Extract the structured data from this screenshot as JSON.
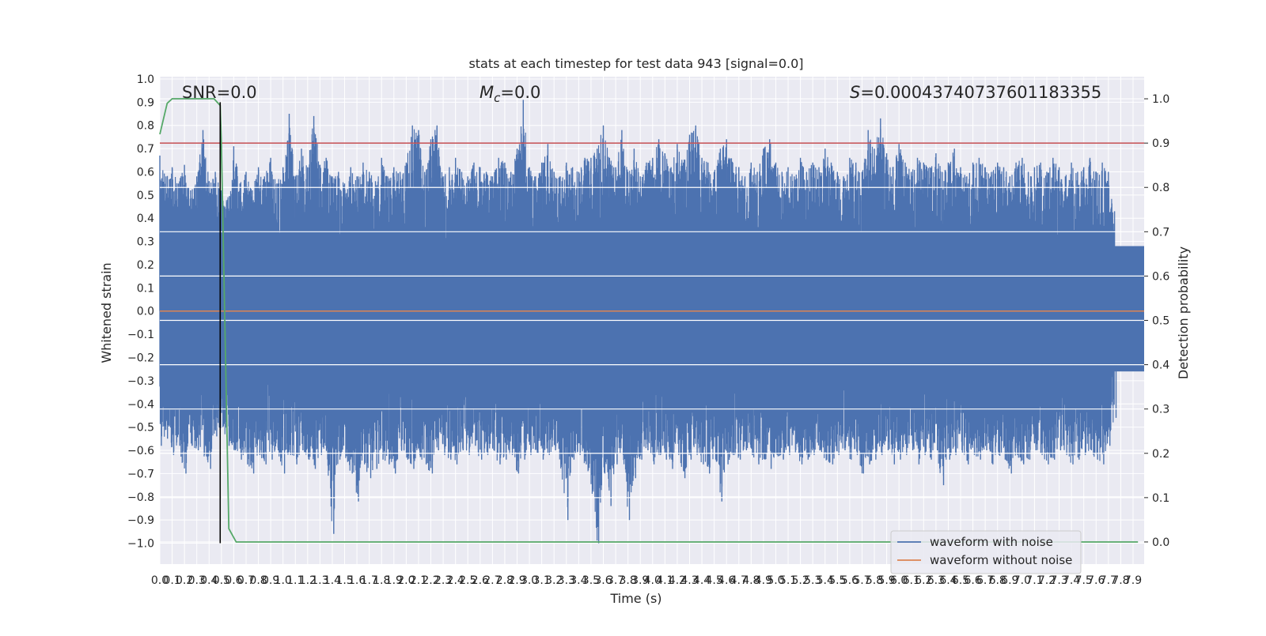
{
  "chart_data": {
    "type": "line",
    "title": "stats at each timestep for test data 943 [signal=0.0]",
    "xlabel": "Time (s)",
    "ylabel": "Whitened strain",
    "y2label": "Detection probability",
    "xlim": [
      0.0,
      7.99
    ],
    "ylim": [
      -1.09,
      1.01
    ],
    "y2lim": [
      -0.05,
      1.05
    ],
    "x_ticks": [
      "0.0",
      "0.1",
      "0.2",
      "0.3",
      "0.4",
      "0.5",
      "0.6",
      "0.7",
      "0.8",
      "0.9",
      "1.0",
      "1.1",
      "1.2",
      "1.3",
      "1.4",
      "1.5",
      "1.6",
      "1.7",
      "1.8",
      "1.9",
      "2.0",
      "2.1",
      "2.2",
      "2.3",
      "2.4",
      "2.5",
      "2.6",
      "2.7",
      "2.8",
      "2.9",
      "3.0",
      "3.1",
      "3.2",
      "3.3",
      "3.4",
      "3.5",
      "3.6",
      "3.7",
      "3.8",
      "3.9",
      "4.0",
      "4.1",
      "4.2",
      "4.3",
      "4.4",
      "4.5",
      "4.6",
      "4.7",
      "4.8",
      "4.9",
      "5.0",
      "5.1",
      "5.2",
      "5.3",
      "5.4",
      "5.5",
      "5.6",
      "5.7",
      "5.8",
      "5.9",
      "6.0",
      "6.1",
      "6.2",
      "6.3",
      "6.4",
      "6.5",
      "6.6",
      "6.7",
      "6.8",
      "6.9",
      "7.0",
      "7.1",
      "7.2",
      "7.3",
      "7.4",
      "7.5",
      "7.6",
      "7.7",
      "7.8",
      "7.9"
    ],
    "y_ticks": [
      "1.0",
      "0.9",
      "0.8",
      "0.7",
      "0.6",
      "0.5",
      "0.4",
      "0.3",
      "0.2",
      "0.1",
      "0.0",
      "−0.1",
      "−0.2",
      "−0.3",
      "−0.4",
      "−0.5",
      "−0.6",
      "−0.7",
      "−0.8",
      "−0.9",
      "−1.0"
    ],
    "y2_ticks": [
      "1.0",
      "0.9",
      "0.8",
      "0.7",
      "0.6",
      "0.5",
      "0.4",
      "0.3",
      "0.2",
      "0.1",
      "0.0"
    ],
    "grid": true,
    "legend_position": "bottom-right",
    "annotations": {
      "snr": "SNR=0.0",
      "mc_symbol": "M",
      "mc_sub": "c",
      "mc_value": "=0.0",
      "s_symbol": "S",
      "s_value": "=0.0004374073760118335​5"
    },
    "series": [
      {
        "name": "waveform with noise",
        "color": "#4c72b0",
        "axis": "left",
        "envelope_x": [
          0.0,
          0.05,
          0.1,
          0.15,
          0.2,
          0.25,
          0.3,
          0.35,
          0.4,
          0.45,
          0.5,
          0.55,
          0.6,
          0.65,
          0.7,
          0.75,
          0.8,
          0.85,
          0.9,
          0.95,
          1.0,
          1.05,
          1.1,
          1.15,
          1.2,
          1.25,
          1.3,
          1.35,
          1.4,
          1.45,
          1.5,
          1.55,
          1.6,
          1.65,
          1.7,
          1.75,
          1.8,
          1.85,
          1.9,
          1.95,
          2.0,
          2.05,
          2.1,
          2.15,
          2.2,
          2.25,
          2.3,
          2.35,
          2.4,
          2.45,
          2.5,
          2.55,
          2.6,
          2.65,
          2.7,
          2.75,
          2.8,
          2.85,
          2.9,
          2.95,
          3.0,
          3.05,
          3.1,
          3.15,
          3.2,
          3.25,
          3.3,
          3.35,
          3.4,
          3.45,
          3.5,
          3.55,
          3.6,
          3.65,
          3.7,
          3.75,
          3.8,
          3.85,
          3.9,
          3.95,
          4.0,
          4.05,
          4.1,
          4.15,
          4.2,
          4.25,
          4.3,
          4.35,
          4.4,
          4.45,
          4.5,
          4.55,
          4.6,
          4.65,
          4.7,
          4.75,
          4.8,
          4.85,
          4.9,
          4.95,
          5.0,
          5.05,
          5.1,
          5.15,
          5.2,
          5.25,
          5.3,
          5.35,
          5.4,
          5.45,
          5.5,
          5.55,
          5.6,
          5.65,
          5.7,
          5.75,
          5.8,
          5.85,
          5.9,
          5.95,
          6.0,
          6.05,
          6.1,
          6.15,
          6.2,
          6.25,
          6.3,
          6.35,
          6.4,
          6.45,
          6.5,
          6.55,
          6.6,
          6.65,
          6.7,
          6.75,
          6.8,
          6.85,
          6.9,
          6.95,
          7.0,
          7.05,
          7.1,
          7.15,
          7.2,
          7.25,
          7.3,
          7.35,
          7.4,
          7.45,
          7.5,
          7.55,
          7.6,
          7.65,
          7.7,
          7.75,
          7.8,
          7.85,
          7.9,
          7.95,
          7.99
        ],
        "envelope_max": [
          0.67,
          0.58,
          0.62,
          0.55,
          0.63,
          0.52,
          0.58,
          0.78,
          0.56,
          0.6,
          0.52,
          0.48,
          0.71,
          0.55,
          0.6,
          0.52,
          0.62,
          0.58,
          0.66,
          0.55,
          0.62,
          0.85,
          0.58,
          0.7,
          0.62,
          0.84,
          0.63,
          0.66,
          0.58,
          0.6,
          0.55,
          0.62,
          0.58,
          0.64,
          0.6,
          0.56,
          0.66,
          0.58,
          0.62,
          0.6,
          0.64,
          0.8,
          0.78,
          0.6,
          0.74,
          0.8,
          0.58,
          0.62,
          0.66,
          0.6,
          0.58,
          0.64,
          0.62,
          0.6,
          0.58,
          0.66,
          0.64,
          0.6,
          0.7,
          0.91,
          0.62,
          0.58,
          0.64,
          0.72,
          0.6,
          0.58,
          0.64,
          0.62,
          0.6,
          0.66,
          0.66,
          0.7,
          0.8,
          0.66,
          0.62,
          0.78,
          0.6,
          0.7,
          0.58,
          0.64,
          0.66,
          0.74,
          0.68,
          0.62,
          0.72,
          0.64,
          0.76,
          0.8,
          0.66,
          0.64,
          0.6,
          0.7,
          0.74,
          0.64,
          0.62,
          0.58,
          0.64,
          0.6,
          0.7,
          0.74,
          0.64,
          0.6,
          0.62,
          0.58,
          0.66,
          0.6,
          0.64,
          0.62,
          0.7,
          0.64,
          0.6,
          0.58,
          0.66,
          0.64,
          0.6,
          0.78,
          0.7,
          0.83,
          0.68,
          0.62,
          0.72,
          0.64,
          0.6,
          0.66,
          0.64,
          0.62,
          0.68,
          0.6,
          0.64,
          0.7,
          0.62,
          0.58,
          0.64,
          0.66,
          0.62,
          0.6,
          0.64,
          0.62,
          0.58,
          0.64,
          0.66,
          0.6,
          0.62,
          0.64,
          0.6,
          0.66,
          0.62,
          0.58,
          0.64,
          0.6,
          0.62,
          0.66,
          0.6,
          0.64,
          0.6,
          0.43
        ],
        "envelope_min": [
          -0.58,
          -0.55,
          -0.62,
          -0.58,
          -0.7,
          -0.58,
          -0.6,
          -0.62,
          -0.68,
          -0.54,
          -0.5,
          -0.58,
          -0.6,
          -0.64,
          -0.66,
          -0.7,
          -0.62,
          -0.66,
          -0.64,
          -0.6,
          -0.7,
          -0.62,
          -0.66,
          -0.6,
          -0.64,
          -0.68,
          -0.62,
          -0.6,
          -0.96,
          -0.64,
          -0.62,
          -0.7,
          -0.82,
          -0.66,
          -0.72,
          -0.68,
          -0.64,
          -0.66,
          -0.7,
          -0.6,
          -0.64,
          -0.68,
          -0.62,
          -0.66,
          -0.7,
          -0.6,
          -0.62,
          -0.64,
          -0.66,
          -0.6,
          -0.62,
          -0.58,
          -0.64,
          -0.62,
          -0.6,
          -0.66,
          -0.64,
          -0.62,
          -0.7,
          -0.64,
          -0.62,
          -0.6,
          -0.64,
          -0.62,
          -0.6,
          -0.66,
          -0.9,
          -0.64,
          -0.62,
          -0.66,
          -0.76,
          -1.0,
          -0.7,
          -0.84,
          -0.66,
          -0.62,
          -0.9,
          -0.72,
          -0.64,
          -0.6,
          -0.66,
          -0.62,
          -0.64,
          -0.68,
          -0.62,
          -0.72,
          -0.64,
          -0.62,
          -0.66,
          -0.7,
          -0.64,
          -0.82,
          -0.66,
          -0.62,
          -0.64,
          -0.6,
          -0.62,
          -0.66,
          -0.64,
          -0.68,
          -0.62,
          -0.64,
          -0.62,
          -0.6,
          -0.66,
          -0.64,
          -0.62,
          -0.6,
          -0.64,
          -0.66,
          -0.62,
          -0.6,
          -0.64,
          -0.62,
          -0.7,
          -0.66,
          -0.64,
          -0.62,
          -0.6,
          -0.66,
          -0.64,
          -0.62,
          -0.6,
          -0.66,
          -0.62,
          -0.64,
          -0.6,
          -0.75,
          -0.64,
          -0.62,
          -0.6,
          -0.66,
          -0.62,
          -0.64,
          -0.6,
          -0.66,
          -0.62,
          -0.64,
          -0.7,
          -0.62,
          -0.66,
          -0.64,
          -0.6,
          -0.62,
          -0.66,
          -0.64,
          -0.6,
          -0.62,
          -0.66,
          -0.64,
          -0.62,
          -0.6,
          -0.64,
          -0.66,
          -0.58,
          -0.46
        ]
      },
      {
        "name": "waveform without noise",
        "color": "#dd8452",
        "axis": "left",
        "x": [
          0.0,
          7.99
        ],
        "y": [
          0.0,
          0.0
        ]
      },
      {
        "color": "#55a868",
        "axis": "right",
        "x": [
          0.0,
          0.06,
          0.1,
          0.2,
          0.3,
          0.4,
          0.44,
          0.49,
          0.5,
          0.56,
          0.62,
          7.94
        ],
        "y": [
          0.92,
          0.99,
          1.0,
          1.0,
          1.0,
          1.0,
          1.0,
          0.985,
          0.9,
          0.03,
          0.0,
          0.0
        ]
      }
    ],
    "threshold": {
      "color": "#c44e52",
      "axis": "right",
      "value": 0.9
    },
    "marker": {
      "color": "#000000",
      "x": 0.49,
      "y_from": -1.0,
      "y_to": 0.9
    }
  }
}
